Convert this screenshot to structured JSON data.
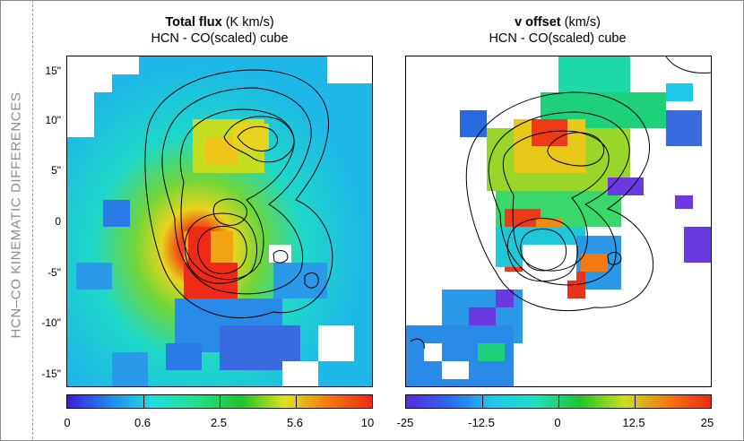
{
  "sidebar": {
    "label": "HCN–CO KINEMATIC DIFFERENCES"
  },
  "left_panel": {
    "title_main": "Total flux",
    "title_unit": " (K km/s)",
    "subtitle": "HCN - CO(scaled) cube",
    "y_ticks": [
      "15\"",
      "10\"",
      "5\"",
      "0",
      "-5\"",
      "-10\"",
      "-15\""
    ],
    "colorbar_labels": [
      "0",
      "0.6",
      "2.5",
      "5.6",
      "10"
    ],
    "colorbar_colors": [
      "#3a1fd6",
      "#1f8cf0",
      "#1fe0e0",
      "#22e08a",
      "#1fc62a",
      "#e2e21e",
      "#f27a10",
      "#ef2a17"
    ]
  },
  "right_panel": {
    "title_main": "v offset",
    "title_unit": " (km/s)",
    "subtitle": "HCN - CO(scaled) cube",
    "colorbar_labels": [
      "-25",
      "-12.5",
      "0",
      "12.5",
      "25"
    ],
    "colorbar_colors": [
      "#5a2bd8",
      "#2a6af0",
      "#1fc8f0",
      "#1fe0c0",
      "#1fc62a",
      "#cbe01e",
      "#f27a10",
      "#ef2a17"
    ]
  }
}
